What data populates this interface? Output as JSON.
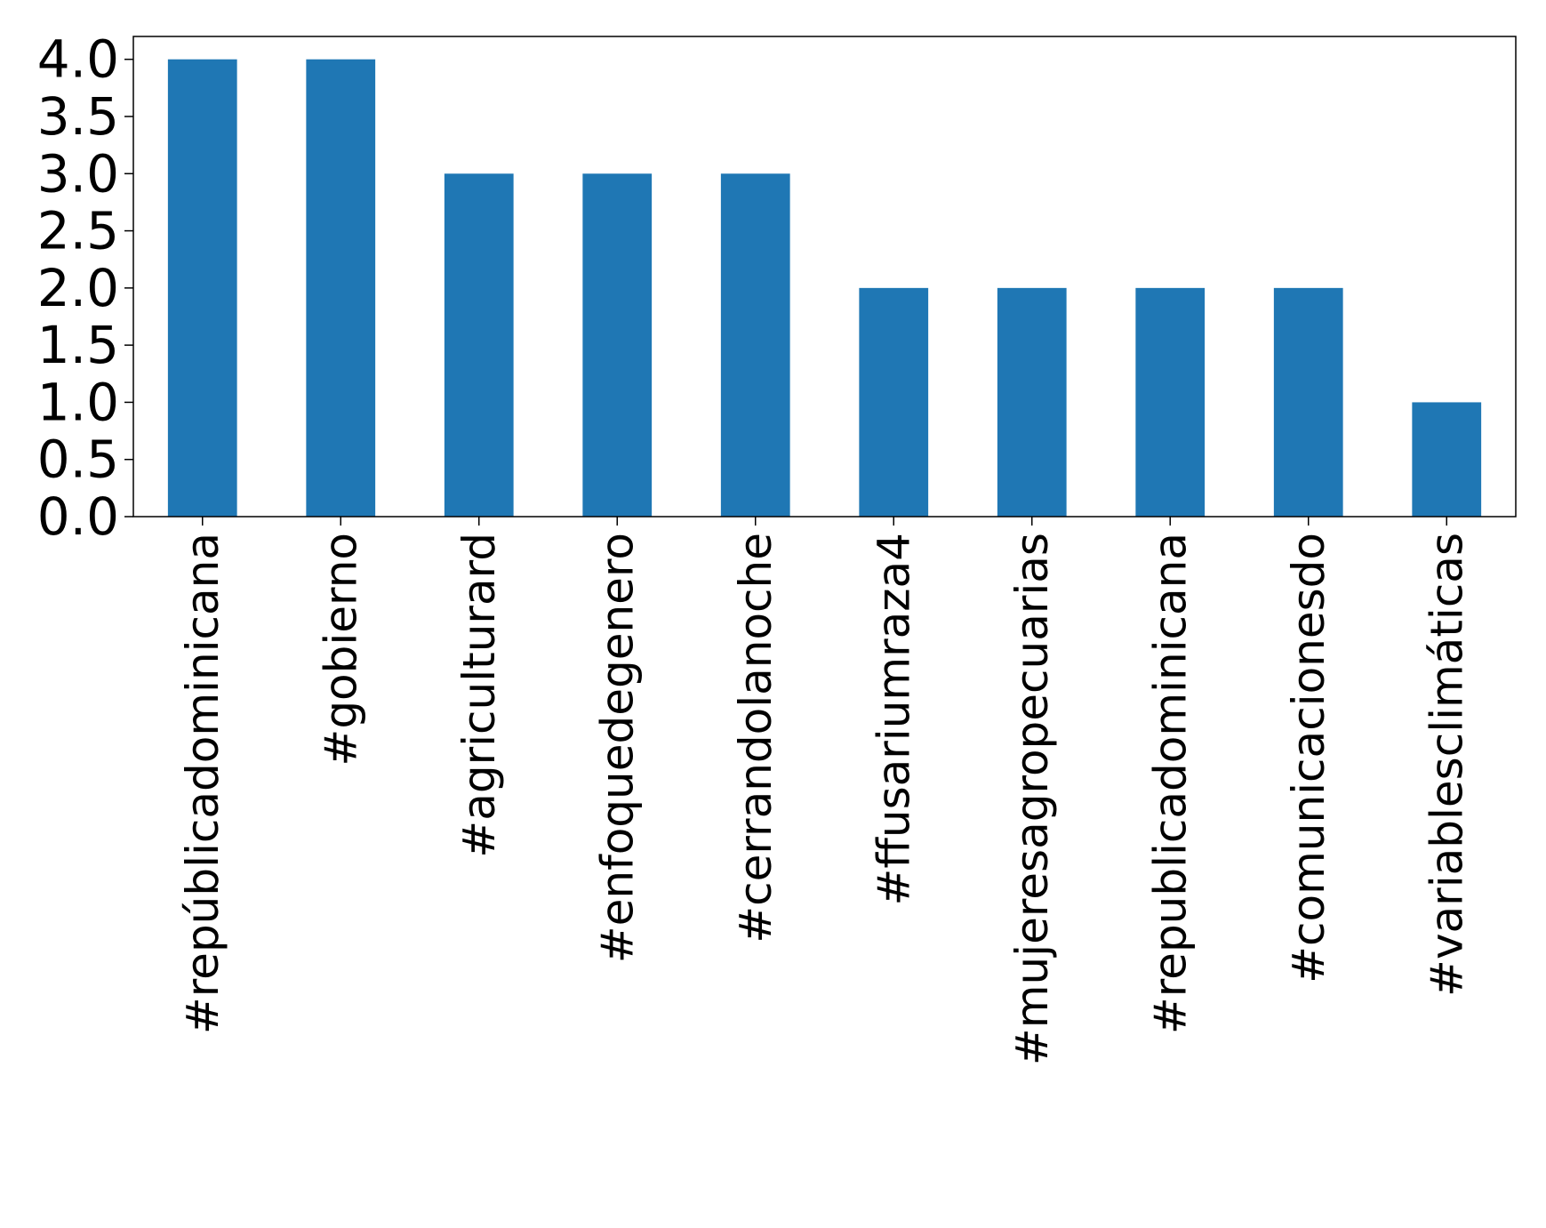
{
  "chart_data": {
    "type": "bar",
    "title": "",
    "xlabel": "",
    "ylabel": "",
    "categories": [
      "#repúblicadominicana",
      "#gobierno",
      "#agriculturard",
      "#enfoquedegenero",
      "#cerrandolanoche",
      "#ffusariumraza4",
      "#mujeresagropecuarias",
      "#republicadominicana",
      "#comunicacionesdo",
      "#variablesclimáticas"
    ],
    "values": [
      4,
      4,
      3,
      3,
      3,
      2,
      2,
      2,
      2,
      1
    ],
    "ylim": [
      0,
      4.2
    ],
    "yticks": [
      "0.0",
      "0.5",
      "1.0",
      "1.5",
      "2.0",
      "2.5",
      "3.0",
      "3.5",
      "4.0"
    ],
    "grid": false,
    "legend": "none",
    "colors": {
      "bar": "#1f77b4",
      "axis": "#000000",
      "background": "#ffffff"
    }
  }
}
